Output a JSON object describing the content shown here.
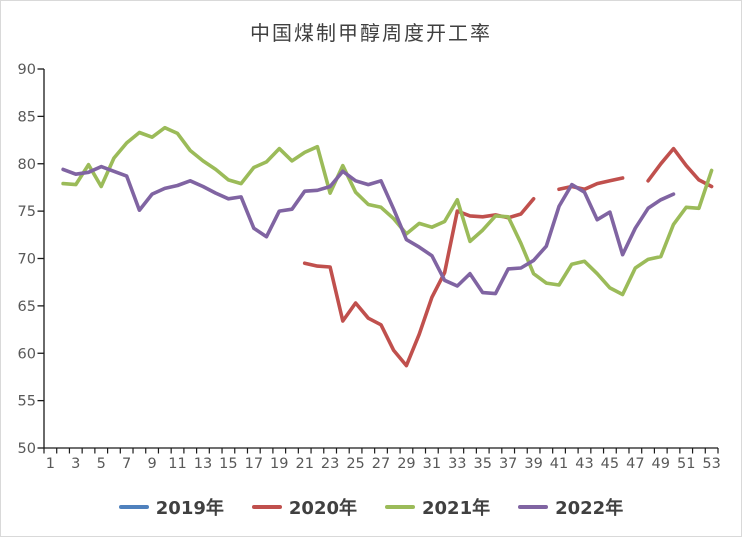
{
  "title": "中国煤制甲醇周度开工率",
  "colors": {
    "title_text": "#404040",
    "legend_text": "#404040",
    "axis_line": "#1a1a1a",
    "axis_tick_text": "#595959",
    "background": "#ffffff",
    "series_2019": "#4f81bd",
    "series_2020": "#c0504d",
    "series_2021": "#9bbb59",
    "series_2022": "#8064a2"
  },
  "chart_data": {
    "type": "line",
    "title": "中国煤制甲醇周度开工率",
    "xlabel": "",
    "ylabel": "",
    "ylim": [
      50,
      90
    ],
    "y_ticks": [
      50,
      55,
      60,
      65,
      70,
      75,
      80,
      85,
      90
    ],
    "x_range": [
      1,
      53
    ],
    "x_tick_labels": [
      1,
      3,
      5,
      7,
      9,
      11,
      13,
      15,
      17,
      19,
      21,
      23,
      25,
      27,
      29,
      31,
      33,
      35,
      37,
      39,
      41,
      43,
      45,
      47,
      49,
      51,
      53
    ],
    "grid": false,
    "legend_position": "bottom",
    "series": [
      {
        "name": "2019年",
        "color": "#4f81bd",
        "values": []
      },
      {
        "name": "2020年",
        "color": "#c0504d",
        "values": [
          null,
          null,
          null,
          null,
          null,
          null,
          null,
          null,
          null,
          null,
          null,
          null,
          null,
          null,
          null,
          null,
          null,
          null,
          null,
          null,
          69.5,
          69.2,
          69.1,
          63.4,
          65.3,
          63.7,
          63.0,
          60.3,
          58.7,
          62.0,
          65.9,
          68.5,
          75.0,
          74.5,
          74.4,
          74.6,
          74.3,
          74.7,
          76.3,
          null,
          77.3,
          77.6,
          77.3,
          77.9,
          78.2,
          78.5,
          null,
          78.2,
          80.0,
          81.6,
          79.8,
          78.3,
          77.6
        ]
      },
      {
        "name": "2021年",
        "color": "#9bbb59",
        "values": [
          null,
          77.9,
          77.8,
          79.9,
          77.6,
          80.6,
          82.2,
          83.3,
          82.8,
          83.8,
          83.2,
          81.4,
          80.3,
          79.4,
          78.3,
          77.9,
          79.6,
          80.2,
          81.6,
          80.3,
          81.2,
          81.8,
          76.9,
          79.8,
          77.0,
          75.7,
          75.4,
          74.2,
          72.6,
          73.7,
          73.3,
          73.9,
          76.2,
          71.8,
          73.0,
          74.5,
          74.4,
          71.6,
          68.4,
          67.4,
          67.2,
          69.4,
          69.7,
          68.4,
          66.9,
          66.2,
          69.0,
          69.9,
          70.2,
          73.6,
          75.4,
          75.3,
          79.3
        ]
      },
      {
        "name": "2022年",
        "color": "#8064a2",
        "values": [
          null,
          79.4,
          78.9,
          79.1,
          79.7,
          79.2,
          78.7,
          75.1,
          76.8,
          77.4,
          77.7,
          78.2,
          77.6,
          76.9,
          76.3,
          76.5,
          73.2,
          72.3,
          75.0,
          75.2,
          77.1,
          77.2,
          77.6,
          79.2,
          78.2,
          77.8,
          78.2,
          75.2,
          72.0,
          71.2,
          70.3,
          67.7,
          67.1,
          68.4,
          66.4,
          66.3,
          68.9,
          69.0,
          69.8,
          71.3,
          75.5,
          77.8,
          77.0,
          74.1,
          74.9,
          70.4,
          73.2,
          75.3,
          76.2,
          76.8,
          null,
          null,
          null
        ]
      }
    ]
  }
}
